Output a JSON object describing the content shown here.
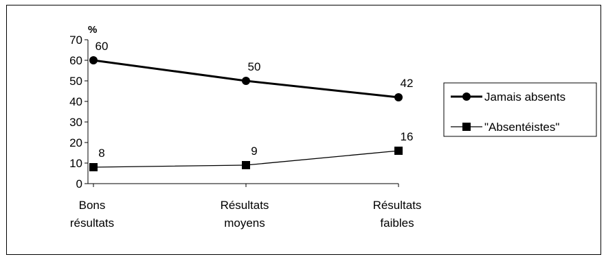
{
  "chart_data": {
    "type": "line",
    "ylabel": "%",
    "ylim": [
      0,
      70
    ],
    "yticks": [
      0,
      10,
      20,
      30,
      40,
      50,
      60,
      70
    ],
    "categories": [
      [
        "Bons",
        "résultats"
      ],
      [
        "Résultats",
        "moyens"
      ],
      [
        "Résultats",
        "faibles"
      ]
    ],
    "series": [
      {
        "name": "Jamais absents",
        "values": [
          60,
          50,
          42
        ],
        "marker": "circle",
        "line": "thick"
      },
      {
        "name": "\"Absentéistes\"",
        "values": [
          8,
          9,
          16
        ],
        "marker": "square",
        "line": "thin"
      }
    ],
    "legend": "right",
    "grid": false
  }
}
